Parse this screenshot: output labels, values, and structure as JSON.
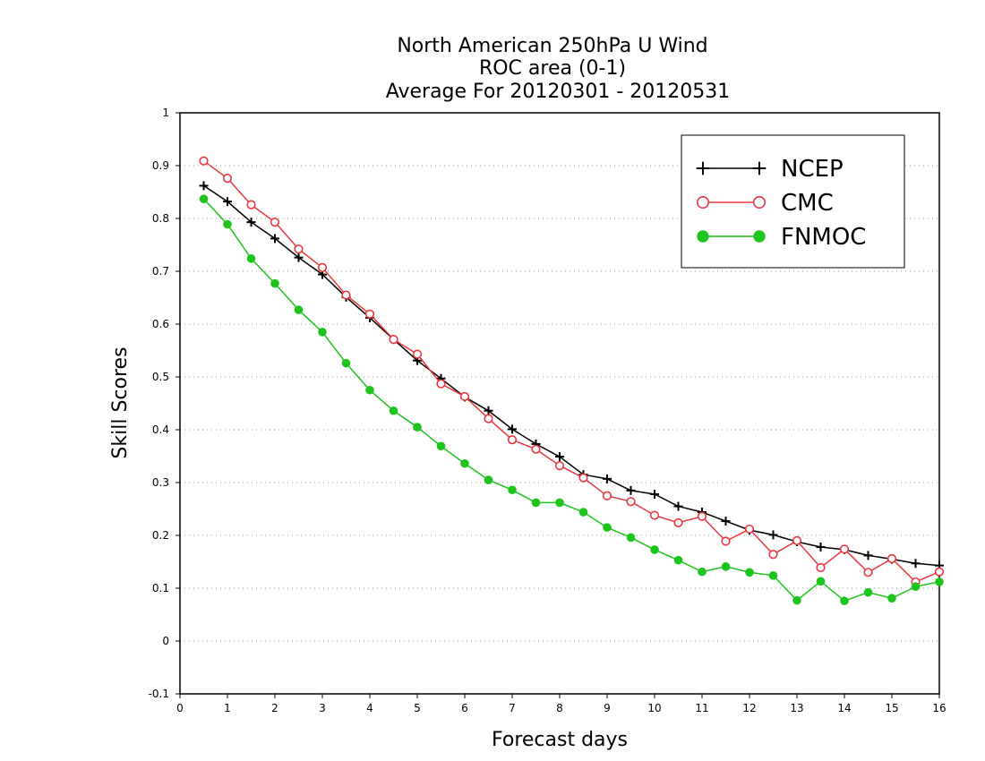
{
  "chart_data": {
    "type": "line",
    "title": [
      "North American 250hPa U Wind",
      "ROC area (0-1)",
      "Average For 20120301 - 20120531"
    ],
    "xlabel": "Forecast days",
    "ylabel": "Skill Scores",
    "xlim": [
      0,
      16
    ],
    "ylim": [
      -0.1,
      1
    ],
    "xticks": [
      "0",
      "1",
      "2",
      "3",
      "4",
      "5",
      "6",
      "7",
      "8",
      "9",
      "10",
      "11",
      "12",
      "13",
      "14",
      "15",
      "16"
    ],
    "yticks": [
      "-0.1",
      "0",
      "0.1",
      "0.2",
      "0.3",
      "0.4",
      "0.5",
      "0.6",
      "0.7",
      "0.8",
      "0.9",
      "1"
    ],
    "grid": "horizontal-dotted",
    "legend_position": "top-right",
    "x": [
      0.5,
      1,
      1.5,
      2,
      2.5,
      3,
      3.5,
      4,
      4.5,
      5,
      5.5,
      6,
      6.5,
      7,
      7.5,
      8,
      8.5,
      9,
      9.5,
      10,
      10.5,
      11,
      11.5,
      12,
      12.5,
      13,
      13.5,
      14,
      14.5,
      15,
      15.5,
      16
    ],
    "series": [
      {
        "name": "NCEP",
        "color": "#000000",
        "marker": "plus",
        "values": [
          0.862,
          0.832,
          0.793,
          0.762,
          0.726,
          0.694,
          0.651,
          0.612,
          0.571,
          0.531,
          0.497,
          0.462,
          0.436,
          0.401,
          0.373,
          0.349,
          0.315,
          0.307,
          0.285,
          0.278,
          0.255,
          0.244,
          0.227,
          0.21,
          0.201,
          0.188,
          0.178,
          0.173,
          0.162,
          0.155,
          0.147,
          0.143
        ]
      },
      {
        "name": "CMC",
        "color": "#e8373e",
        "marker": "open-circle",
        "values": [
          0.909,
          0.876,
          0.826,
          0.793,
          0.742,
          0.707,
          0.655,
          0.619,
          0.571,
          0.543,
          0.487,
          0.463,
          0.421,
          0.381,
          0.363,
          0.332,
          0.309,
          0.275,
          0.264,
          0.238,
          0.224,
          0.236,
          0.189,
          0.212,
          0.164,
          0.19,
          0.139,
          0.174,
          0.13,
          0.156,
          0.112,
          0.131
        ]
      },
      {
        "name": "FNMOC",
        "color": "#1cc41c",
        "marker": "filled-circle",
        "values": [
          0.837,
          0.789,
          0.724,
          0.677,
          0.627,
          0.585,
          0.526,
          0.475,
          0.436,
          0.405,
          0.369,
          0.336,
          0.305,
          0.286,
          0.262,
          0.262,
          0.244,
          0.215,
          0.196,
          0.173,
          0.153,
          0.131,
          0.141,
          0.13,
          0.124,
          0.077,
          0.113,
          0.076,
          0.092,
          0.081,
          0.103,
          0.112
        ]
      }
    ]
  }
}
